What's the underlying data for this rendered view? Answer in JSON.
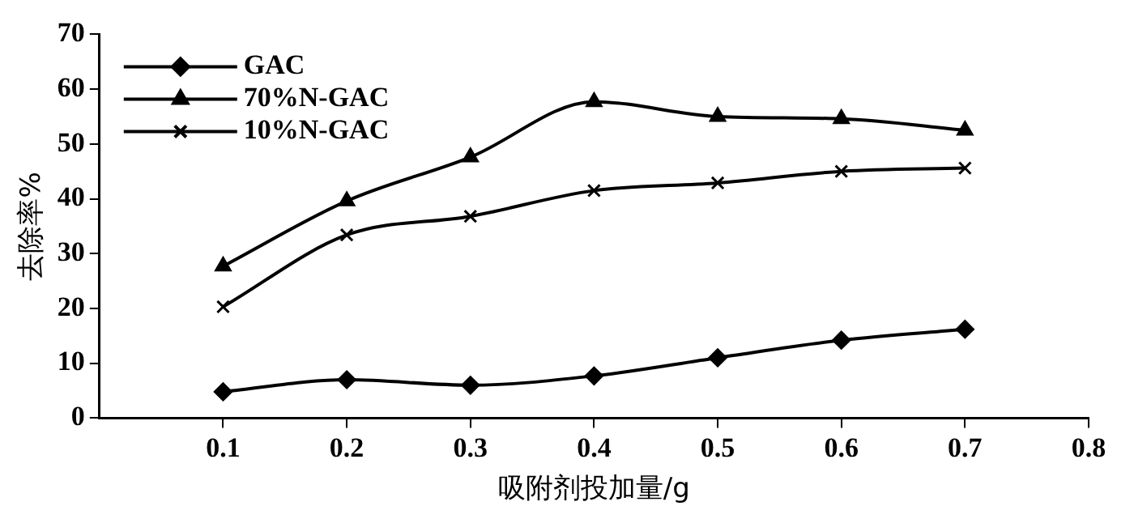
{
  "chart_data": {
    "type": "line",
    "xlabel": "吸附剂投加量/g",
    "ylabel": "去除率%",
    "x": [
      0.1,
      0.2,
      0.3,
      0.4,
      0.5,
      0.6,
      0.7
    ],
    "series": [
      {
        "name": "GAC",
        "color": "#000000",
        "marker": "diamond",
        "values": [
          4.8,
          7,
          6,
          7.7,
          11,
          14.2,
          16.2
        ]
      },
      {
        "name": "70%N-GAC",
        "color": "#000000",
        "marker": "triangle",
        "values": [
          27.7,
          39.6,
          47.6,
          57.7,
          55,
          54.6,
          52.5
        ]
      },
      {
        "name": "10%N-GAC",
        "color": "#000000",
        "marker": "cross",
        "values": [
          20.3,
          33.4,
          36.8,
          41.5,
          42.9,
          45,
          45.6
        ]
      }
    ],
    "xlim": [
      0,
      0.8
    ],
    "xticks": [
      0.1,
      0.2,
      0.3,
      0.4,
      0.5,
      0.6,
      0.7,
      0.8
    ],
    "ylim": [
      0,
      70
    ],
    "yticks": [
      0,
      10,
      20,
      30,
      40,
      50,
      60,
      70
    ],
    "grid": false,
    "legend": "top left"
  }
}
